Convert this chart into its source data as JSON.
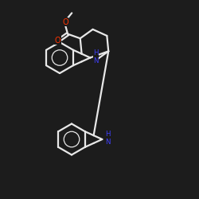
{
  "background_color": "#1c1c1c",
  "bond_color": "#e8e8e8",
  "N_color": "#4040ff",
  "O_color": "#ff3300",
  "bond_width": 1.6,
  "figsize": [
    2.5,
    2.5
  ],
  "dpi": 100,
  "xlim": [
    0,
    10
  ],
  "ylim": [
    0,
    10
  ]
}
